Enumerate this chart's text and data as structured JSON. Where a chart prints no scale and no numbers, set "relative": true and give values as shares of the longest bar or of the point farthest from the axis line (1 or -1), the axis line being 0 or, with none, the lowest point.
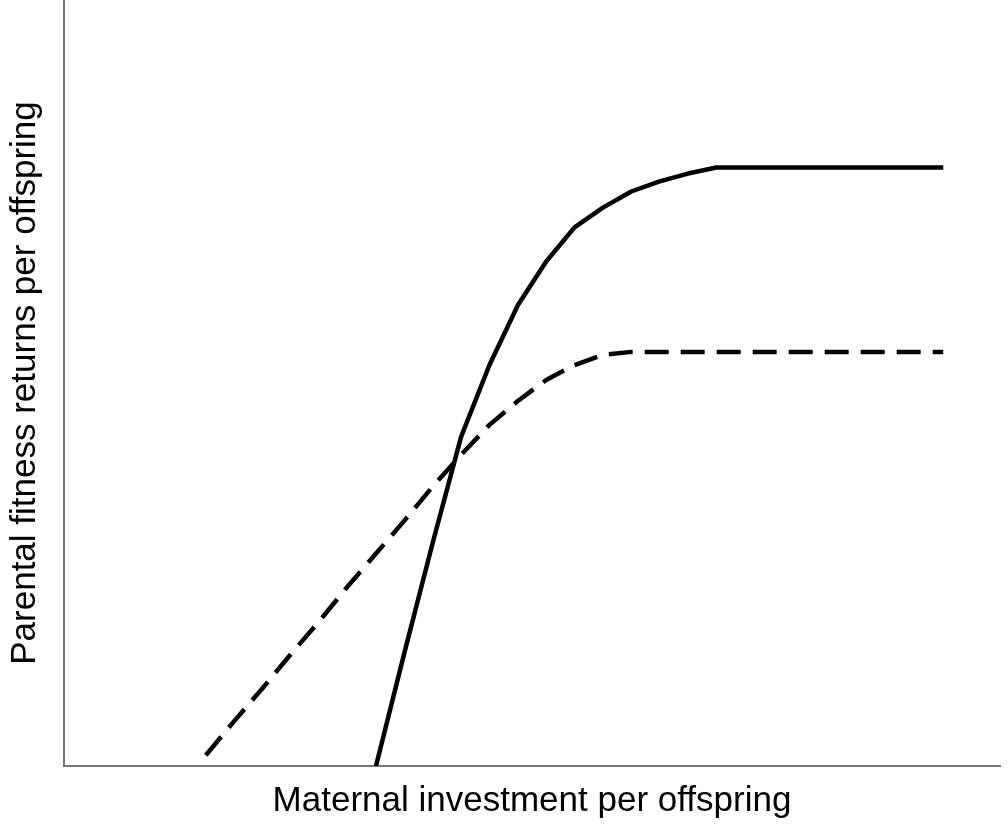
{
  "chart_data": {
    "type": "line",
    "relative": true,
    "xlabel": "Maternal investment per offspring",
    "ylabel": "Parental fitness returns per offspring",
    "categories": [
      null,
      null,
      null,
      null,
      null,
      null,
      null,
      null,
      null,
      null,
      null,
      null,
      null,
      null,
      null,
      null,
      null,
      null,
      null,
      null,
      null,
      null,
      null,
      null,
      null,
      null,
      null,
      null,
      null,
      null,
      null,
      null,
      null,
      null
    ],
    "series": [
      {
        "color": "#000000",
        "line_style": "solid",
        "values": [
          null,
          null,
          null,
          null,
          null,
          null,
          null,
          null,
          null,
          null,
          null,
          0,
          0.189,
          0.373,
          0.55,
          0.67,
          0.77,
          0.843,
          0.9,
          0.933,
          0.96,
          0.977,
          0.99,
          1,
          1,
          1,
          1,
          1,
          1,
          1,
          1,
          1,
          null,
          null
        ]
      },
      {
        "color": "#000000",
        "line_style": "dashed",
        "values": [
          null,
          null,
          null,
          null,
          null,
          0.018,
          0.075,
          0.13,
          0.187,
          0.242,
          0.3,
          0.355,
          0.41,
          0.467,
          0.52,
          0.57,
          0.61,
          0.645,
          0.67,
          0.687,
          0.692,
          0.692,
          0.692,
          0.692,
          0.692,
          0.692,
          0.692,
          0.692,
          0.692,
          0.692,
          0.692,
          0.692,
          null,
          null
        ]
      }
    ],
    "grid": false,
    "legend": false,
    "tick_labels": false,
    "marker": "none"
  }
}
